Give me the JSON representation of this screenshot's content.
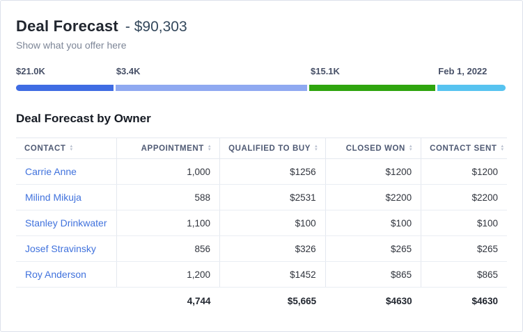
{
  "header": {
    "title": "Deal Forecast",
    "title_value": "- $90,303",
    "subtitle": "Show what you offer here"
  },
  "pipeline": {
    "segments": [
      {
        "label": "$21.0K",
        "color": "#3f6ce3",
        "width_pct": 19.9,
        "left_pct": 0
      },
      {
        "label": "$3.4K",
        "color": "#8fa9f1",
        "width_pct": 39.0,
        "left_pct": 20.4
      },
      {
        "label": "$15.1K",
        "color": "#2fa50e",
        "width_pct": 25.6,
        "left_pct": 60.0
      },
      {
        "label": "Feb 1, 2022",
        "color": "#57c3f0",
        "width_pct": 14.0,
        "left_pct": 86.0
      }
    ]
  },
  "icons": {
    "sort_up": "▴",
    "sort_down": "▾"
  },
  "table": {
    "title": "Deal Forecast by Owner",
    "columns": [
      "Contact",
      "Appointment",
      "Qualified to Buy",
      "Closed Won",
      "Contact Sent"
    ],
    "rows": [
      {
        "contact": "Carrie Anne",
        "appointment": "1,000",
        "qualified": "$1256",
        "closed": "$1200",
        "sent": "$1200"
      },
      {
        "contact": "Milind Mikuja",
        "appointment": "588",
        "qualified": "$2531",
        "closed": "$2200",
        "sent": "$2200"
      },
      {
        "contact": "Stanley Drinkwater",
        "appointment": "1,100",
        "qualified": "$100",
        "closed": "$100",
        "sent": "$100"
      },
      {
        "contact": "Josef Stravinsky",
        "appointment": "856",
        "qualified": "$326",
        "closed": "$265",
        "sent": "$265"
      },
      {
        "contact": "Roy Anderson",
        "appointment": "1,200",
        "qualified": "$1452",
        "closed": "$865",
        "sent": "$865"
      }
    ],
    "totals": {
      "appointment": "4,744",
      "qualified": "$5,665",
      "closed": "$4630",
      "sent": "$4630"
    }
  }
}
